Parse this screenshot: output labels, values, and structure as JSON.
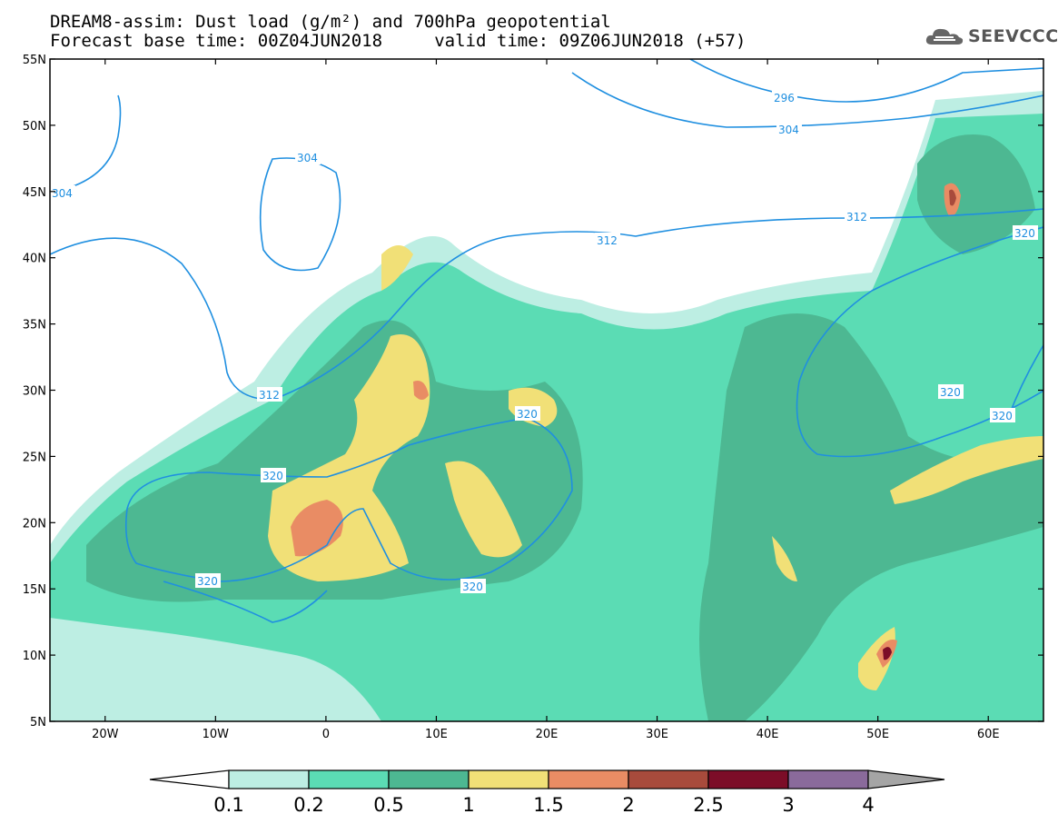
{
  "header": {
    "title_line1": "DREAM8-assim: Dust load (g/m²) and 700hPa geopotential",
    "title_line2": "Forecast base time: 00Z04JUN2018     valid time: 09Z06JUN2018 (+57)",
    "logo_text": "SEEVCCC",
    "logo_icon": "cloud-icon"
  },
  "map": {
    "lat_labels": [
      "55N",
      "50N",
      "45N",
      "40N",
      "35N",
      "30N",
      "25N",
      "20N",
      "15N",
      "10N",
      "5N"
    ],
    "lon_labels": [
      "20W",
      "10W",
      "0",
      "10E",
      "20E",
      "30E",
      "40E",
      "50E",
      "60E"
    ],
    "contour_labels": [
      "296",
      "304",
      "304",
      "304",
      "312",
      "312",
      "312",
      "320",
      "320",
      "320",
      "320",
      "320",
      "320",
      "320"
    ]
  },
  "colorbar": {
    "levels": [
      "0.1",
      "0.2",
      "0.5",
      "1",
      "1.5",
      "2",
      "2.5",
      "3",
      "4"
    ],
    "colors": [
      "#bdeee3",
      "#5bdcb4",
      "#4db892",
      "#f1e077",
      "#e98c64",
      "#a84b3c",
      "#7c0d28",
      "#8a6a9b",
      "#a5a5a5"
    ]
  }
}
